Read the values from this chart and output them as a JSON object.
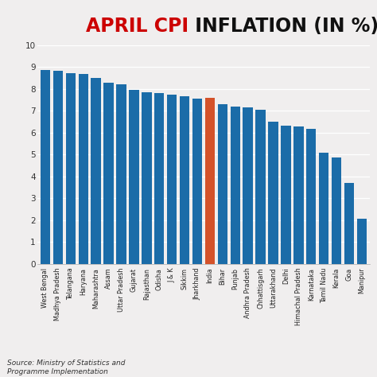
{
  "title_part1": "APRIL CPI",
  "title_part2": " INFLATION (IN %)",
  "categories": [
    "West Bengal",
    "Madhya Pradesh",
    "Telangana",
    "Haryana",
    "Maharashtra",
    "Assam",
    "Uttar Pradesh",
    "Gujarat",
    "Rajasthan",
    "Odisha",
    "J & K",
    "Sikkim",
    "Jharkhand",
    "India",
    "Bihar",
    "Punjab",
    "Andhra Pradesh",
    "Chhattisgarh",
    "Uttarakhand",
    "Delhi",
    "Himachal Pradesh",
    "Karnataka",
    "Tamil Nadu",
    "Kerala",
    "Goa",
    "Manipur"
  ],
  "values": [
    8.85,
    8.83,
    8.73,
    8.68,
    8.5,
    8.3,
    8.2,
    7.95,
    7.85,
    7.8,
    7.75,
    7.68,
    7.55,
    7.61,
    7.3,
    7.2,
    7.15,
    7.05,
    6.5,
    6.32,
    6.3,
    6.18,
    5.1,
    4.85,
    3.72,
    2.05
  ],
  "bar_color_default": "#1b6ca8",
  "bar_color_highlight": "#d4522a",
  "highlight_index": 13,
  "ylim": [
    0,
    10
  ],
  "yticks": [
    0,
    1,
    2,
    3,
    4,
    5,
    6,
    7,
    8,
    9,
    10
  ],
  "source_text": "Source: Ministry of Statistics and\nProgramme Implementation",
  "background_color": "#f0eeee",
  "plot_bg_color": "#f0eeee",
  "title_color1": "#cc0000",
  "title_color2": "#111111",
  "title_fontsize": 17,
  "tick_fontsize": 5.8,
  "ytick_fontsize": 7.5,
  "source_fontsize": 6.5
}
